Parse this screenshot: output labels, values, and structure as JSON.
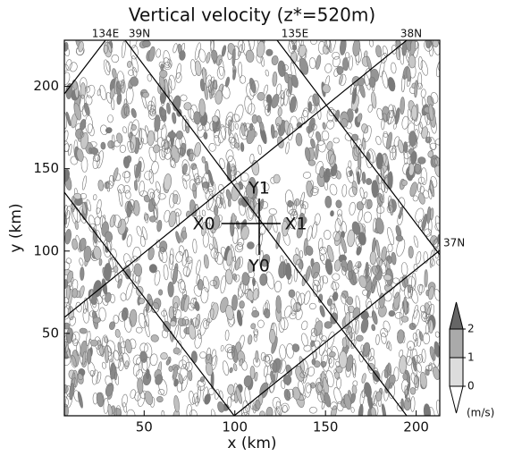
{
  "chart_data": {
    "type": "contour",
    "title": "Vertical velocity (z*=520m)",
    "x_label": "x (km)",
    "y_label": "y (km)",
    "xlim": [
      6,
      213
    ],
    "ylim": [
      0,
      228
    ],
    "xticks": [
      50,
      100,
      150,
      200
    ],
    "yticks": [
      50,
      100,
      150,
      200
    ],
    "map_labels": [
      "134E",
      "39N",
      "135E",
      "38N",
      "37N"
    ],
    "section_labels": [
      "X0",
      "X1",
      "Y0",
      "Y1"
    ],
    "colorbar": {
      "ticks": [
        0,
        1,
        2
      ],
      "label": "(m/s)"
    }
  }
}
